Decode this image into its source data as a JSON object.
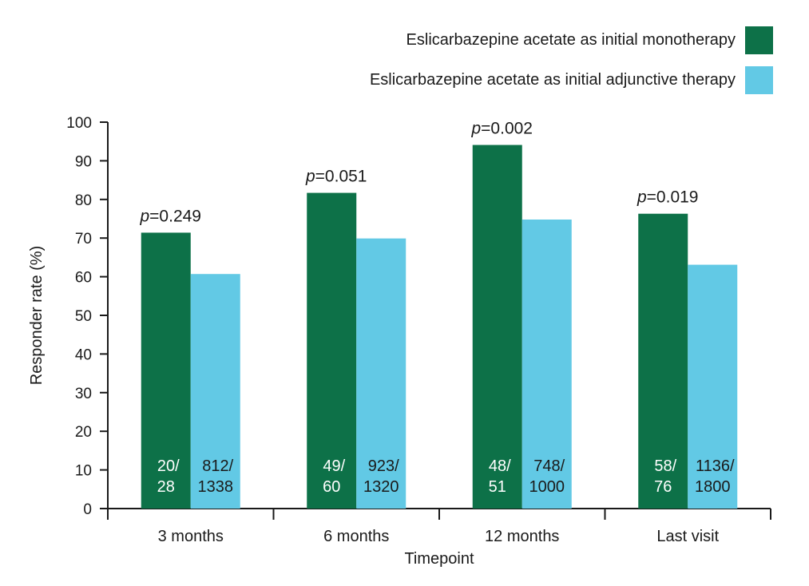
{
  "chart_data": {
    "type": "bar",
    "categories": [
      "3 months",
      "6 months",
      "12 months",
      "Last visit"
    ],
    "series": [
      {
        "name": "Eslicarbazepine acetate as initial monotherapy",
        "color": "#0d7148",
        "values": [
          71.4,
          81.7,
          94.1,
          76.3
        ],
        "counts": [
          [
            "20/",
            "28"
          ],
          [
            "49/",
            "60"
          ],
          [
            "48/",
            "51"
          ],
          [
            "58/",
            "76"
          ]
        ]
      },
      {
        "name": "Eslicarbazepine acetate as initial adjunctive therapy",
        "color": "#62c9e5",
        "values": [
          60.7,
          69.9,
          74.8,
          63.1
        ],
        "counts": [
          [
            "812/",
            "1338"
          ],
          [
            "923/",
            "1320"
          ],
          [
            "748/",
            "1000"
          ],
          [
            "1136/",
            "1800"
          ]
        ]
      }
    ],
    "p_values": [
      {
        "prefix": "p",
        "value": "=0.249"
      },
      {
        "prefix": "p",
        "value": "=0.051"
      },
      {
        "prefix": "p",
        "value": "=0.002"
      },
      {
        "prefix": "p",
        "value": "=0.019"
      }
    ],
    "xlabel": "Timepoint",
    "ylabel": "Responder rate (%)",
    "ylim": [
      0,
      100
    ],
    "yticks": [
      0,
      10,
      20,
      30,
      40,
      50,
      60,
      70,
      80,
      90,
      100
    ],
    "grid": false,
    "legend_position": "top-right"
  }
}
